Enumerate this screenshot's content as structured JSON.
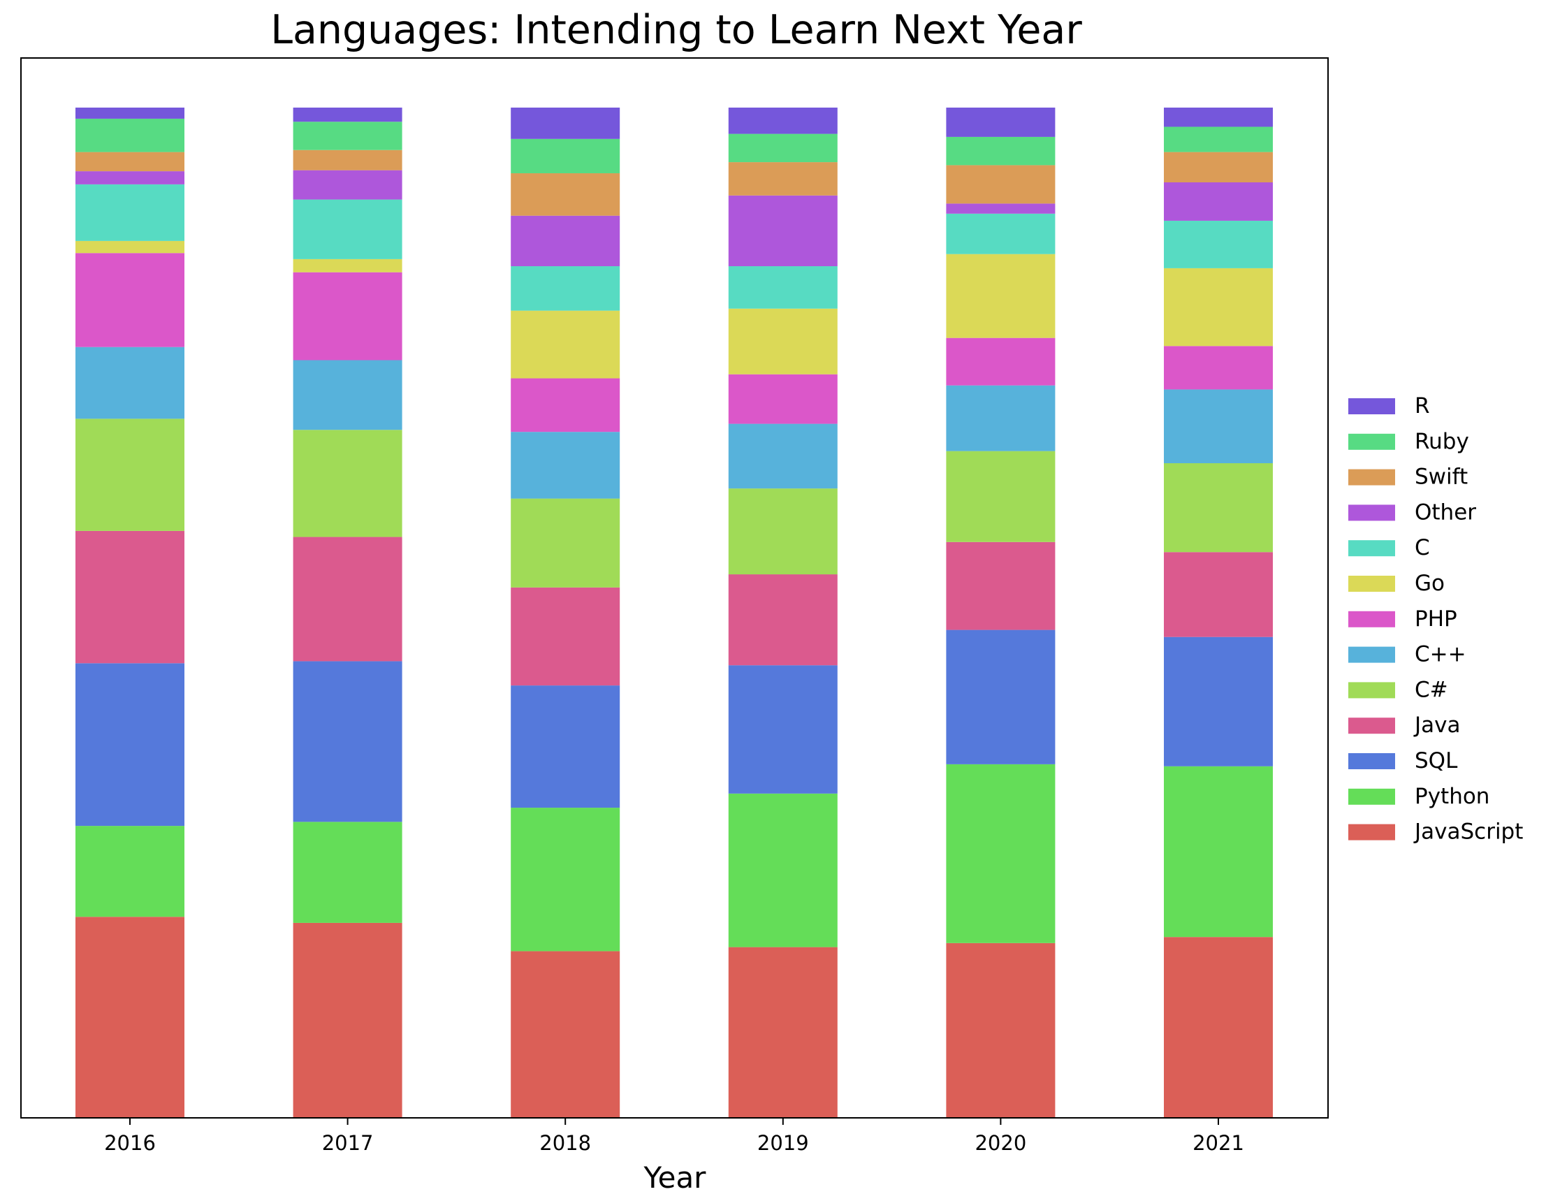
{
  "chart_data": {
    "type": "bar",
    "stacked": true,
    "normalized": true,
    "title": "Languages: Intending to Learn Next Year",
    "xlabel": "Year",
    "ylabel": "",
    "y_ticks_shown": false,
    "ylim": [
      0,
      1
    ],
    "grid": false,
    "legend_position": "right",
    "categories": [
      "2016",
      "2017",
      "2018",
      "2019",
      "2020",
      "2021"
    ],
    "series": [
      {
        "name": "JavaScript",
        "color": "#db5f57",
        "values": [
          0.199,
          0.193,
          0.165,
          0.169,
          0.173,
          0.179
        ]
      },
      {
        "name": "Python",
        "color": "#64dd58",
        "values": [
          0.09,
          0.1,
          0.142,
          0.152,
          0.177,
          0.169
        ]
      },
      {
        "name": "SQL",
        "color": "#5579db",
        "values": [
          0.161,
          0.159,
          0.121,
          0.127,
          0.133,
          0.128
        ]
      },
      {
        "name": "Java",
        "color": "#db5a8e",
        "values": [
          0.131,
          0.123,
          0.097,
          0.09,
          0.087,
          0.084
        ]
      },
      {
        "name": "C#",
        "color": "#a0db57",
        "values": [
          0.111,
          0.106,
          0.088,
          0.085,
          0.09,
          0.088
        ]
      },
      {
        "name": "C++",
        "color": "#57b2db",
        "values": [
          0.071,
          0.069,
          0.066,
          0.064,
          0.065,
          0.073
        ]
      },
      {
        "name": "PHP",
        "color": "#db57c9",
        "values": [
          0.093,
          0.087,
          0.053,
          0.049,
          0.047,
          0.043
        ]
      },
      {
        "name": "Go",
        "color": "#dbd957",
        "values": [
          0.012,
          0.013,
          0.067,
          0.065,
          0.083,
          0.077
        ]
      },
      {
        "name": "C",
        "color": "#57dbc2",
        "values": [
          0.056,
          0.059,
          0.044,
          0.042,
          0.04,
          0.047
        ]
      },
      {
        "name": "Other",
        "color": "#ae57db",
        "values": [
          0.013,
          0.029,
          0.05,
          0.07,
          0.01,
          0.038
        ]
      },
      {
        "name": "Swift",
        "color": "#db9c57",
        "values": [
          0.019,
          0.02,
          0.042,
          0.033,
          0.038,
          0.03
        ]
      },
      {
        "name": "Ruby",
        "color": "#57db83",
        "values": [
          0.033,
          0.028,
          0.034,
          0.028,
          0.028,
          0.025
        ]
      },
      {
        "name": "R",
        "color": "#7557db",
        "values": [
          0.011,
          0.014,
          0.031,
          0.026,
          0.029,
          0.019
        ]
      }
    ]
  }
}
